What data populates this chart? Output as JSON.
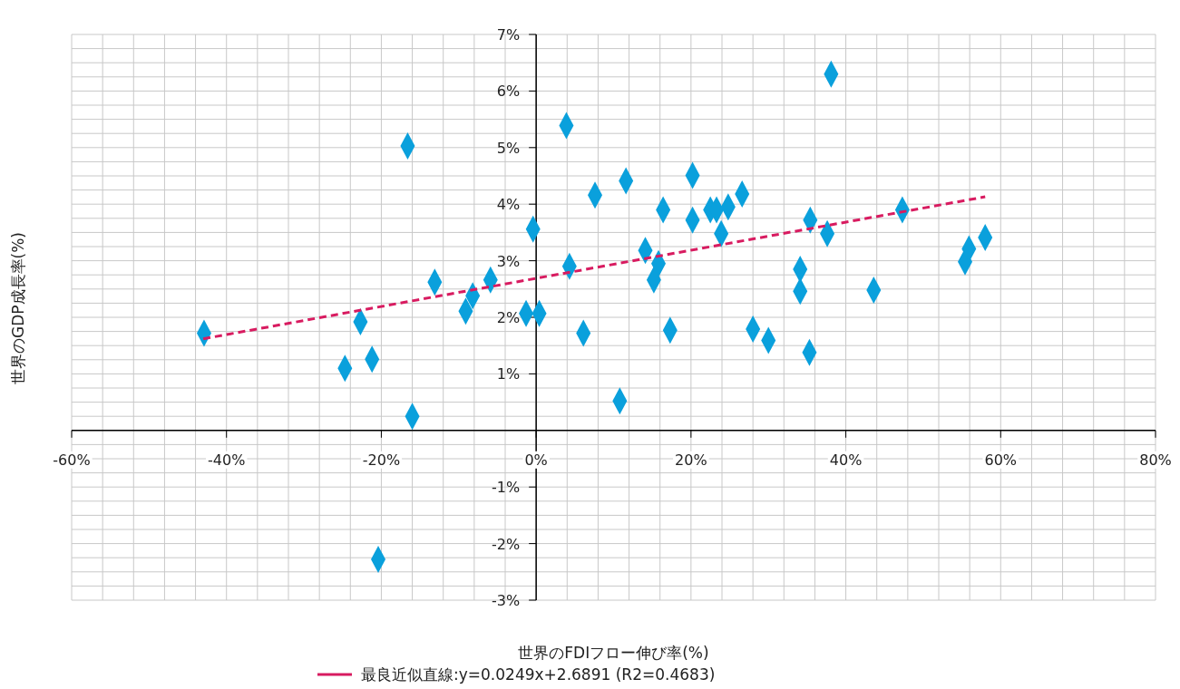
{
  "chart_data": {
    "type": "scatter",
    "xlabel": "世界のFDIフロー伸び率(%)",
    "ylabel": "世界のGDP成長率(%)",
    "xlim": [
      -60,
      80
    ],
    "ylim": [
      -3,
      7
    ],
    "xticks": [
      {
        "value": -60,
        "label": "-60%"
      },
      {
        "value": -40,
        "label": "-40%"
      },
      {
        "value": -20,
        "label": "-20%"
      },
      {
        "value": 0,
        "label": "0%"
      },
      {
        "value": 20,
        "label": "20%"
      },
      {
        "value": 40,
        "label": "40%"
      },
      {
        "value": 60,
        "label": "60%"
      },
      {
        "value": 80,
        "label": "80%"
      }
    ],
    "yticks": [
      {
        "value": -3,
        "label": "-3%"
      },
      {
        "value": -2,
        "label": "-2%"
      },
      {
        "value": -1,
        "label": "-1%"
      },
      {
        "value": 1,
        "label": "1%"
      },
      {
        "value": 2,
        "label": "2%"
      },
      {
        "value": 3,
        "label": "3%"
      },
      {
        "value": 4,
        "label": "4%"
      },
      {
        "value": 5,
        "label": "5%"
      },
      {
        "value": 6,
        "label": "6%"
      },
      {
        "value": 7,
        "label": "7%"
      }
    ],
    "grid": true,
    "legend": "bottom",
    "series": [
      {
        "marker": "diamond",
        "color": "#0aa0dc",
        "x": [
          -42.9,
          -24.7,
          -22.7,
          -21.2,
          -20.4,
          -16.6,
          -16.0,
          -13.1,
          -9.1,
          -8.2,
          -5.9,
          -1.3,
          -0.4,
          0.4,
          3.9,
          4.3,
          6.1,
          7.6,
          10.8,
          11.6,
          14.1,
          15.2,
          15.8,
          16.4,
          17.3,
          20.2,
          20.2,
          22.5,
          23.3,
          23.9,
          24.8,
          26.6,
          28.0,
          30.0,
          34.1,
          34.1,
          35.3,
          35.4,
          37.6,
          38.1,
          43.6,
          47.3,
          55.4,
          55.9,
          58.0
        ],
        "values": [
          1.72,
          1.1,
          1.92,
          1.26,
          -2.28,
          5.03,
          0.25,
          2.62,
          2.11,
          2.38,
          2.66,
          2.07,
          3.56,
          2.07,
          5.39,
          2.9,
          1.72,
          4.16,
          0.52,
          4.41,
          3.18,
          2.66,
          2.95,
          3.9,
          1.77,
          3.72,
          4.51,
          3.9,
          3.9,
          3.48,
          3.95,
          4.18,
          1.79,
          1.59,
          2.85,
          2.46,
          1.38,
          3.72,
          3.48,
          6.3,
          2.48,
          3.9,
          2.98,
          3.21,
          3.41
        ]
      },
      {
        "type": "line",
        "name": "最良近似直線:y=0.0249x+2.6891 (R2=0.4683)",
        "color": "#d81b60",
        "line_style": "dashed",
        "marker": "none",
        "x": [
          -43,
          58
        ],
        "values": [
          1.62,
          4.13
        ]
      }
    ]
  }
}
